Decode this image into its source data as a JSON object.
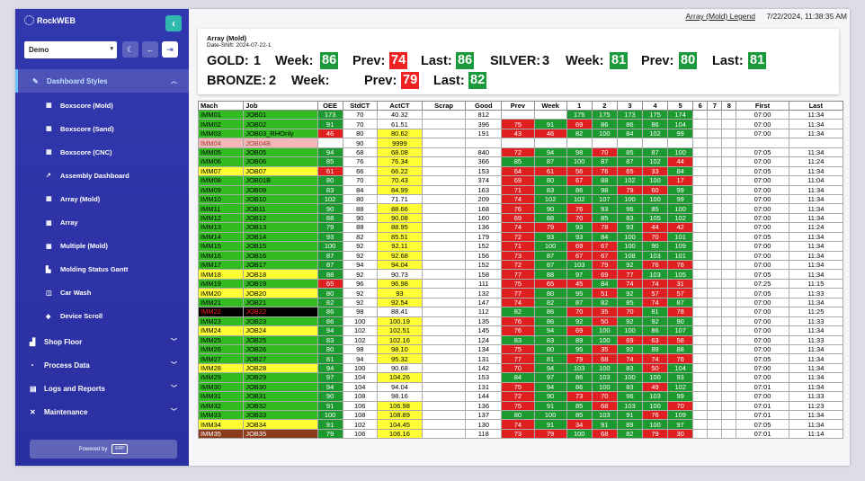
{
  "sidebar": {
    "brand": "RockWEB",
    "selector": "Demo",
    "groups": [
      {
        "label": "Dashboard Styles",
        "icon": "paint-icon"
      },
      {
        "label": "Shop Floor",
        "icon": "factory-icon"
      },
      {
        "label": "Process Data",
        "icon": "chart-icon"
      },
      {
        "label": "Logs and Reports",
        "icon": "book-icon"
      },
      {
        "label": "Maintenance",
        "icon": "tools-icon"
      }
    ],
    "subitems": [
      {
        "label": "Boxscore (Mold)",
        "icon": "table-icon"
      },
      {
        "label": "Boxscore (Sand)",
        "icon": "table-icon"
      },
      {
        "label": "Boxscore (CNC)",
        "icon": "table-icon"
      },
      {
        "label": "Assembly Dashboard",
        "icon": "line-chart-icon"
      },
      {
        "label": "Array (Mold)",
        "icon": "table-icon"
      },
      {
        "label": "Array",
        "icon": "table-icon"
      },
      {
        "label": "Multiple (Mold)",
        "icon": "table-icon"
      },
      {
        "label": "Molding Status Gantt",
        "icon": "gantt-icon"
      },
      {
        "label": "Car Wash",
        "icon": "car-icon"
      },
      {
        "label": "Device Scroll",
        "icon": "layers-icon"
      }
    ],
    "powered": "Powered by",
    "powered_logo": "ERP"
  },
  "topbar": {
    "legend": "Array (Mold) Legend",
    "datetime": "7/22/2024, 11:38:35 AM"
  },
  "summary": {
    "title": "Array (Mold)",
    "date_shift": "Date-Shift: 2024-07-22-1",
    "gold_label": "GOLD:",
    "gold_count": "1",
    "silver_label": "SILVER:",
    "silver_count": "3",
    "bronze_label": "BRONZE:",
    "bronze_count": "2",
    "week_label": "Week:",
    "prev_label": "Prev:",
    "last_label": "Last:",
    "gold_week": "86",
    "gold_prev": "74",
    "gold_last": "86",
    "silver_week": "81",
    "silver_prev": "80",
    "silver_last": "81",
    "bronze_week": "",
    "bronze_prev": "79",
    "bronze_last": "82"
  },
  "colors": {
    "green": "#1a9a3a",
    "red": "#ee2222",
    "light_green": "#33bb22",
    "yellow": "#ffff33"
  },
  "table": {
    "headers": [
      "Mach",
      "Job",
      "OEE",
      "StdCT",
      "ActCT",
      "Scrap",
      "Good",
      "Prev",
      "Week",
      "1",
      "2",
      "3",
      "4",
      "5",
      "6",
      "7",
      "8",
      "First",
      "Last"
    ],
    "rows": [
      {
        "m": "IMM01",
        "j": "JOB01",
        "st": "g",
        "oee": "173",
        "std": "70",
        "act": "40.32",
        "good": "812",
        "prev": "",
        "week": "",
        "h": [
          "175",
          "175",
          "173",
          "175",
          "174"
        ],
        "first": "07:00",
        "last": "11:34"
      },
      {
        "m": "IMM02",
        "j": "JOB02",
        "st": "g",
        "oee": "91",
        "std": "70",
        "act": "61.51",
        "good": "396",
        "prev": "75",
        "week": "91",
        "h": [
          "69",
          "86",
          "86",
          "86",
          "104"
        ],
        "first": "07:00",
        "last": "11:34"
      },
      {
        "m": "IMM03",
        "j": "JOB03_RHOnly",
        "st": "g",
        "oee": "46",
        "std": "80",
        "act": "80.62",
        "good": "191",
        "prev": "43",
        "week": "46",
        "h": [
          "82",
          "100",
          "84",
          "102",
          "99"
        ],
        "first": "07:00",
        "last": "11:34"
      },
      {
        "m": "IMM04",
        "j": "JOB04B",
        "st": "p",
        "oee": "",
        "std": "90",
        "act": "9999",
        "good": "",
        "prev": "",
        "week": "",
        "h": [
          "",
          "",
          "",
          "",
          ""
        ],
        "first": "",
        "last": ""
      },
      {
        "m": "IMM05",
        "j": "JOB05",
        "st": "g",
        "oee": "94",
        "std": "68",
        "act": "68.08",
        "good": "840",
        "prev": "72",
        "week": "94",
        "h": [
          "98",
          "70",
          "85",
          "87",
          "100"
        ],
        "first": "07:05",
        "last": "11:34"
      },
      {
        "m": "IMM06",
        "j": "JOB06",
        "st": "g",
        "oee": "85",
        "std": "76",
        "act": "76.34",
        "good": "366",
        "prev": "85",
        "week": "87",
        "h": [
          "100",
          "87",
          "87",
          "102",
          "44"
        ],
        "first": "07:00",
        "last": "11:24"
      },
      {
        "m": "IMM07",
        "j": "JOB07",
        "st": "y",
        "oee": "61",
        "std": "66",
        "act": "66.22",
        "good": "153",
        "prev": "64",
        "week": "61",
        "h": [
          "56",
          "76",
          "65",
          "33",
          "84"
        ],
        "first": "07:05",
        "last": "11:34"
      },
      {
        "m": "IMM08",
        "j": "JOB01B",
        "st": "g",
        "oee": "80",
        "std": "70",
        "act": "70.43",
        "good": "374",
        "prev": "69",
        "week": "80",
        "h": [
          "67",
          "88",
          "102",
          "100",
          "17"
        ],
        "first": "07:00",
        "last": "11:04"
      },
      {
        "m": "IMM09",
        "j": "JOB09",
        "st": "g",
        "oee": "83",
        "std": "84",
        "act": "84.99",
        "good": "163",
        "prev": "71",
        "week": "83",
        "h": [
          "86",
          "98",
          "79",
          "60",
          "99"
        ],
        "first": "07:00",
        "last": "11:34"
      },
      {
        "m": "IMM10",
        "j": "JOB10",
        "st": "g",
        "oee": "102",
        "std": "80",
        "act": "71.71",
        "good": "209",
        "prev": "74",
        "week": "102",
        "h": [
          "102",
          "107",
          "100",
          "100",
          "99"
        ],
        "first": "07:00",
        "last": "11:34"
      },
      {
        "m": "IMM11",
        "j": "JOB11",
        "st": "g",
        "oee": "90",
        "std": "88",
        "act": "88.66",
        "good": "168",
        "prev": "76",
        "week": "90",
        "h": [
          "76",
          "93",
          "96",
          "85",
          "100"
        ],
        "first": "07:00",
        "last": "11:34"
      },
      {
        "m": "IMM12",
        "j": "JOB12",
        "st": "g",
        "oee": "88",
        "std": "90",
        "act": "90.08",
        "good": "160",
        "prev": "69",
        "week": "88",
        "h": [
          "70",
          "85",
          "83",
          "105",
          "102"
        ],
        "first": "07:00",
        "last": "11:34"
      },
      {
        "m": "IMM13",
        "j": "JOB13",
        "st": "g",
        "oee": "79",
        "std": "88",
        "act": "88.95",
        "good": "136",
        "prev": "74",
        "week": "79",
        "h": [
          "93",
          "78",
          "93",
          "44",
          "42"
        ],
        "first": "07:00",
        "last": "11:24"
      },
      {
        "m": "IMM14",
        "j": "JOB14",
        "st": "g",
        "oee": "93",
        "std": "82",
        "act": "85.51",
        "good": "179",
        "prev": "72",
        "week": "93",
        "h": [
          "93",
          "84",
          "100",
          "70",
          "101"
        ],
        "first": "07:05",
        "last": "11:34"
      },
      {
        "m": "IMM15",
        "j": "JOB15",
        "st": "g",
        "oee": "100",
        "std": "92",
        "act": "92.11",
        "good": "152",
        "prev": "71",
        "week": "100",
        "h": [
          "69",
          "67",
          "100",
          "90",
          "109"
        ],
        "first": "07:00",
        "last": "11:34"
      },
      {
        "m": "IMM16",
        "j": "JOB16",
        "st": "g",
        "oee": "87",
        "std": "92",
        "act": "92.68",
        "good": "156",
        "prev": "73",
        "week": "87",
        "h": [
          "67",
          "67",
          "108",
          "103",
          "101"
        ],
        "first": "07:00",
        "last": "11:34"
      },
      {
        "m": "IMM17",
        "j": "JOB17",
        "st": "g",
        "oee": "87",
        "std": "94",
        "act": "94.04",
        "good": "152",
        "prev": "72",
        "week": "87",
        "h": [
          "103",
          "79",
          "92",
          "76",
          "76"
        ],
        "first": "07:00",
        "last": "11:34"
      },
      {
        "m": "IMM18",
        "j": "JOB18",
        "st": "y",
        "oee": "88",
        "std": "92",
        "act": "90.73",
        "good": "158",
        "prev": "77",
        "week": "88",
        "h": [
          "97",
          "69",
          "77",
          "103",
          "105"
        ],
        "first": "07:05",
        "last": "11:34"
      },
      {
        "m": "IMM19",
        "j": "JOB19",
        "st": "g",
        "oee": "65",
        "std": "96",
        "act": "96.98",
        "good": "111",
        "prev": "75",
        "week": "65",
        "h": [
          "45",
          "84",
          "74",
          "74",
          "31"
        ],
        "first": "07:25",
        "last": "11:15"
      },
      {
        "m": "IMM20",
        "j": "JOB20",
        "st": "y",
        "oee": "80",
        "std": "92",
        "act": "93",
        "good": "132",
        "prev": "77",
        "week": "80",
        "h": [
          "95",
          "51",
          "92",
          "57",
          "57"
        ],
        "first": "07:05",
        "last": "11:33"
      },
      {
        "m": "IMM21",
        "j": "JOB21",
        "st": "g",
        "oee": "82",
        "std": "92",
        "act": "92.54",
        "good": "147",
        "prev": "74",
        "week": "82",
        "h": [
          "87",
          "82",
          "85",
          "74",
          "87"
        ],
        "first": "07:00",
        "last": "11:34"
      },
      {
        "m": "IMM22",
        "j": "JOB22",
        "st": "k",
        "oee": "86",
        "std": "98",
        "act": "88.41",
        "good": "112",
        "prev": "82",
        "week": "86",
        "h": [
          "70",
          "35",
          "70",
          "81",
          "78"
        ],
        "first": "07:00",
        "last": "11:25"
      },
      {
        "m": "IMM23",
        "j": "JOB23",
        "st": "g",
        "oee": "86",
        "std": "100",
        "act": "100.19",
        "good": "135",
        "prev": "76",
        "week": "86",
        "h": [
          "92",
          "50",
          "92",
          "92",
          "90"
        ],
        "first": "07:00",
        "last": "11:33"
      },
      {
        "m": "IMM24",
        "j": "JOB24",
        "st": "y",
        "oee": "94",
        "std": "102",
        "act": "102.51",
        "good": "145",
        "prev": "76",
        "week": "94",
        "h": [
          "69",
          "100",
          "100",
          "86",
          "107"
        ],
        "first": "07:00",
        "last": "11:34"
      },
      {
        "m": "IMM25",
        "j": "JOB25",
        "st": "g",
        "oee": "83",
        "std": "102",
        "act": "102.16",
        "good": "124",
        "prev": "83",
        "week": "83",
        "h": [
          "89",
          "100",
          "69",
          "63",
          "58"
        ],
        "first": "07:00",
        "last": "11:33"
      },
      {
        "m": "IMM26",
        "j": "JOB26",
        "st": "g",
        "oee": "80",
        "std": "98",
        "act": "98.10",
        "good": "134",
        "prev": "75",
        "week": "80",
        "h": [
          "95",
          "35",
          "92",
          "89",
          "88"
        ],
        "first": "07:00",
        "last": "11:34"
      },
      {
        "m": "IMM27",
        "j": "JOB27",
        "st": "g",
        "oee": "81",
        "std": "94",
        "act": "95.32",
        "good": "131",
        "prev": "77",
        "week": "81",
        "h": [
          "79",
          "68",
          "74",
          "74",
          "76"
        ],
        "first": "07:05",
        "last": "11:34"
      },
      {
        "m": "IMM28",
        "j": "JOB28",
        "st": "y",
        "oee": "94",
        "std": "100",
        "act": "90.68",
        "good": "142",
        "prev": "70",
        "week": "94",
        "h": [
          "103",
          "100",
          "83",
          "50",
          "104"
        ],
        "first": "07:00",
        "last": "11:34"
      },
      {
        "m": "IMM29",
        "j": "JOB29",
        "st": "g",
        "oee": "97",
        "std": "104",
        "act": "104.26",
        "good": "153",
        "prev": "84",
        "week": "97",
        "h": [
          "86",
          "103",
          "100",
          "100",
          "93"
        ],
        "first": "07:00",
        "last": "11:34"
      },
      {
        "m": "IMM30",
        "j": "JOB30",
        "st": "g",
        "oee": "94",
        "std": "104",
        "act": "94.04",
        "good": "131",
        "prev": "75",
        "week": "94",
        "h": [
          "86",
          "100",
          "83",
          "49",
          "102"
        ],
        "first": "07:01",
        "last": "11:34"
      },
      {
        "m": "IMM31",
        "j": "JOB31",
        "st": "g",
        "oee": "90",
        "std": "108",
        "act": "98.16",
        "good": "144",
        "prev": "72",
        "week": "90",
        "h": [
          "73",
          "70",
          "96",
          "103",
          "99"
        ],
        "first": "07:00",
        "last": "11:33"
      },
      {
        "m": "IMM32",
        "j": "JOB32",
        "st": "g",
        "oee": "91",
        "std": "106",
        "act": "106.98",
        "good": "136",
        "prev": "75",
        "week": "91",
        "h": [
          "85",
          "68",
          "103",
          "100",
          "70"
        ],
        "first": "07:01",
        "last": "11:23"
      },
      {
        "m": "IMM33",
        "j": "JOB33",
        "st": "g",
        "oee": "100",
        "std": "108",
        "act": "108.89",
        "good": "137",
        "prev": "80",
        "week": "100",
        "h": [
          "85",
          "103",
          "91",
          "76",
          "109"
        ],
        "first": "07:01",
        "last": "11:34"
      },
      {
        "m": "IMM34",
        "j": "JOB34",
        "st": "y",
        "oee": "91",
        "std": "102",
        "act": "104.45",
        "good": "130",
        "prev": "74",
        "week": "91",
        "h": [
          "34",
          "91",
          "89",
          "100",
          "97"
        ],
        "first": "07:05",
        "last": "11:34"
      },
      {
        "m": "IMM35",
        "j": "JOB35",
        "st": "b",
        "oee": "79",
        "std": "106",
        "act": "106.16",
        "good": "118",
        "prev": "73",
        "week": "79",
        "h": [
          "100",
          "68",
          "82",
          "79",
          "30"
        ],
        "first": "07:01",
        "last": "11:14"
      }
    ]
  }
}
